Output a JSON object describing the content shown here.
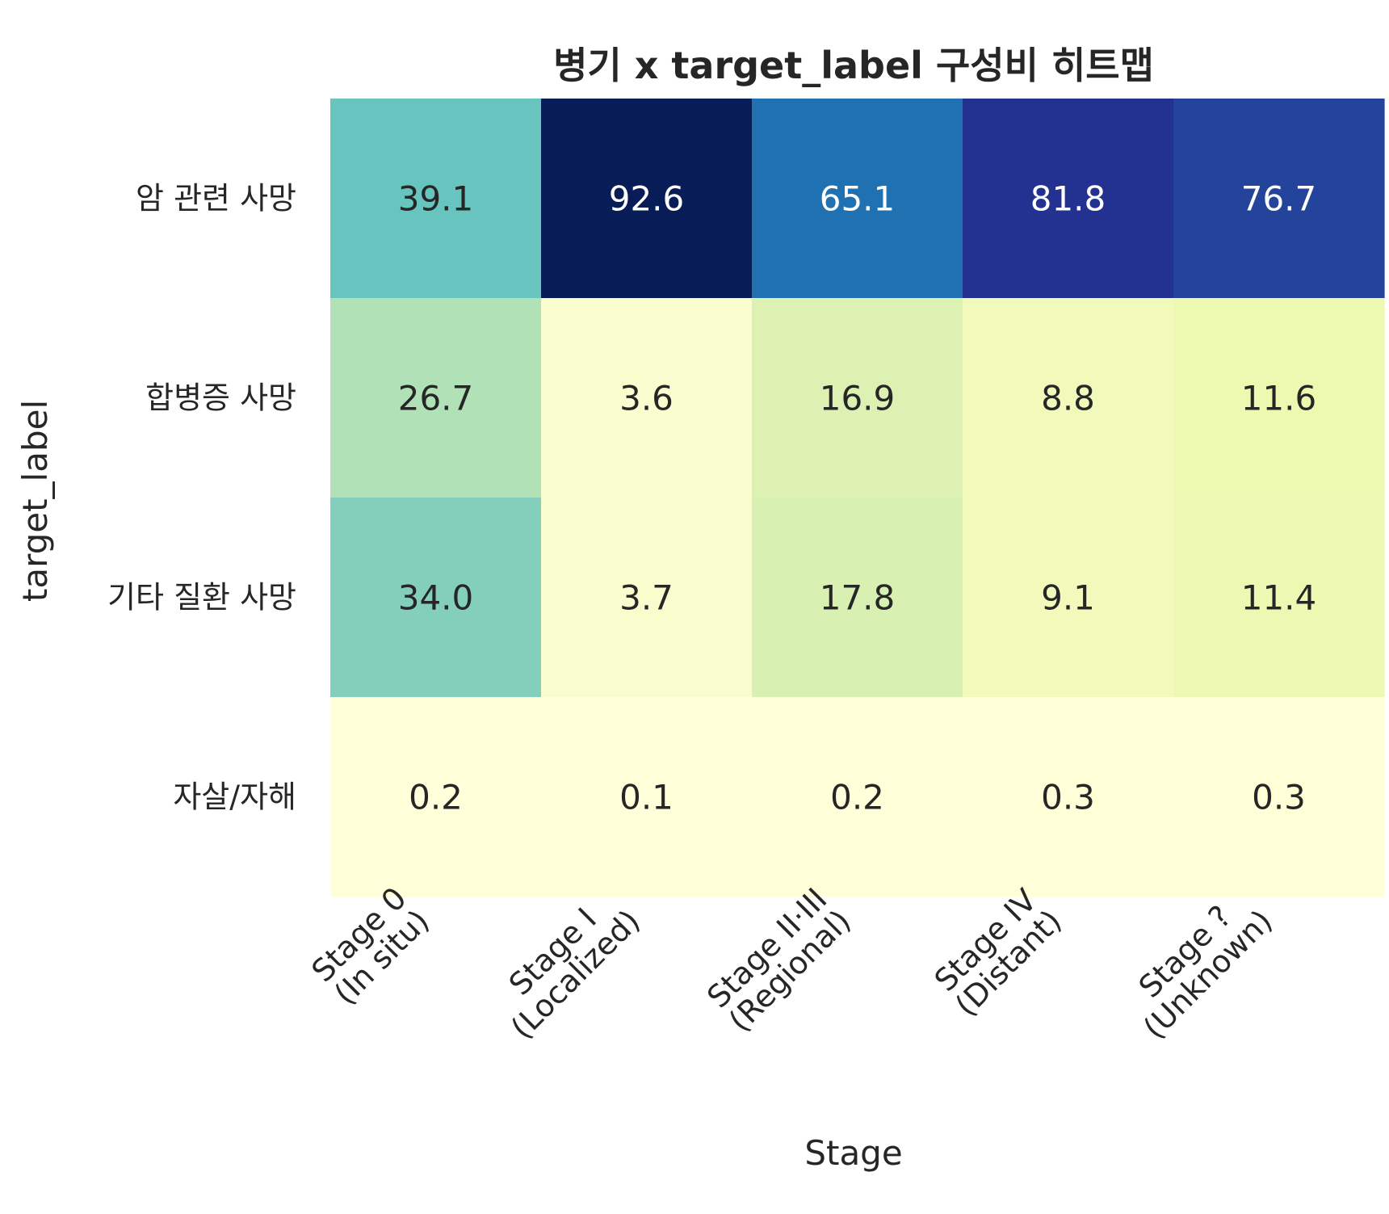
{
  "chart_data": {
    "type": "heatmap",
    "title": "병기 x target_label 구성비 히트맵",
    "xlabel": "Stage",
    "ylabel": "target_label",
    "columns": [
      [
        "Stage 0",
        "(In situ)"
      ],
      [
        "Stage I",
        "(Localized)"
      ],
      [
        "Stage II·III",
        "(Regional)"
      ],
      [
        "Stage IV",
        "(Distant)"
      ],
      [
        "Stage ?",
        "(Unknown)"
      ]
    ],
    "rows": [
      "암 관련 사망",
      "합병증 사망",
      "기타 질환 사망",
      "자살/자해"
    ],
    "values": [
      [
        39.1,
        92.6,
        65.1,
        81.8,
        76.7
      ],
      [
        26.7,
        3.6,
        16.9,
        8.8,
        11.6
      ],
      [
        34.0,
        3.7,
        17.8,
        9.1,
        11.4
      ],
      [
        0.2,
        0.1,
        0.2,
        0.3,
        0.3
      ]
    ],
    "value_format": "0.0",
    "colormap": "YlGnBu",
    "colorbar": false,
    "grid": false
  }
}
